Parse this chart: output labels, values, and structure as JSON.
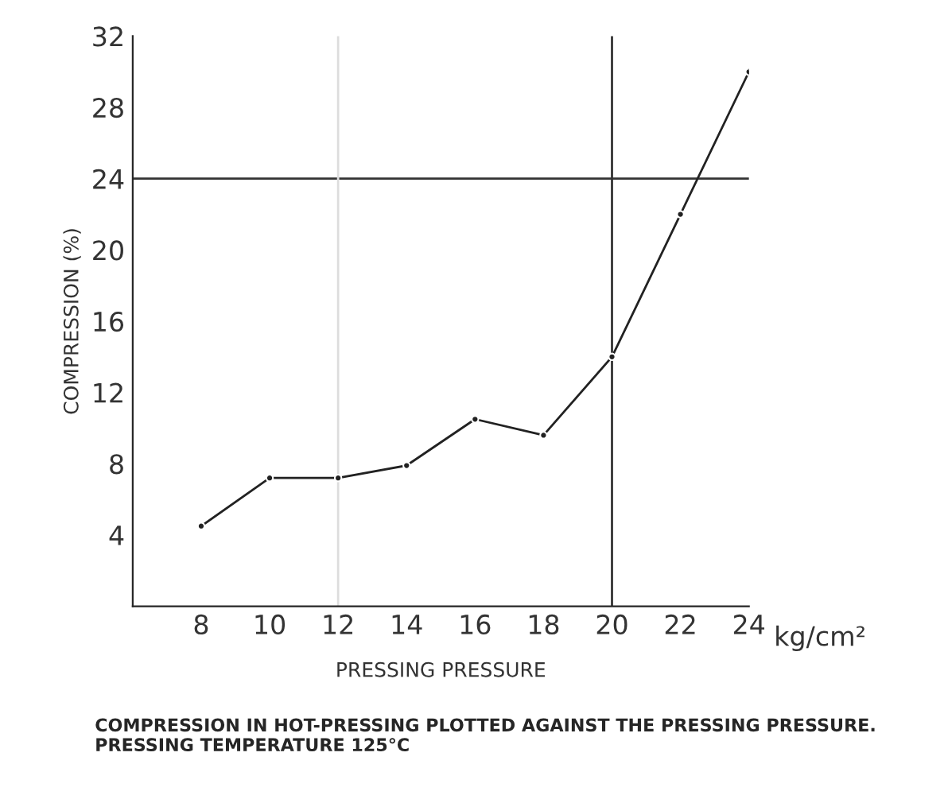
{
  "chart_data": {
    "type": "line",
    "xlabel": "PRESSING PRESSURE",
    "ylabel": "COMPRESSION (%)",
    "x": [
      8,
      10,
      12,
      14,
      16,
      18,
      20,
      22,
      24
    ],
    "series": [
      {
        "color": "#222222",
        "values": [
          4.5,
          7.2,
          7.2,
          7.9,
          10.5,
          9.6,
          14,
          22,
          30
        ]
      }
    ],
    "xlim": [
      6,
      24
    ],
    "xticks": [
      8,
      10,
      12,
      14,
      16,
      18,
      20,
      22,
      24
    ],
    "ylim": [
      0,
      32
    ],
    "yticks": [
      4,
      8,
      12,
      16,
      20,
      24,
      28,
      32
    ],
    "ref_lines": [
      {
        "axis": "y",
        "value": 24,
        "color": "#333333"
      },
      {
        "axis": "x",
        "value": 20,
        "color": "#333333"
      },
      {
        "axis": "x",
        "value": 12,
        "color": "#dddddd"
      }
    ],
    "marker": "circle",
    "line_style": "solid",
    "grid": false,
    "legend": false,
    "annotations": [
      "kg/cm²",
      "COMPRESSION IN HOT-PRESSING PLOTTED AGAINST THE PRESSING PRESSURE. PRESSING TEMPERATURE 125°C"
    ]
  }
}
